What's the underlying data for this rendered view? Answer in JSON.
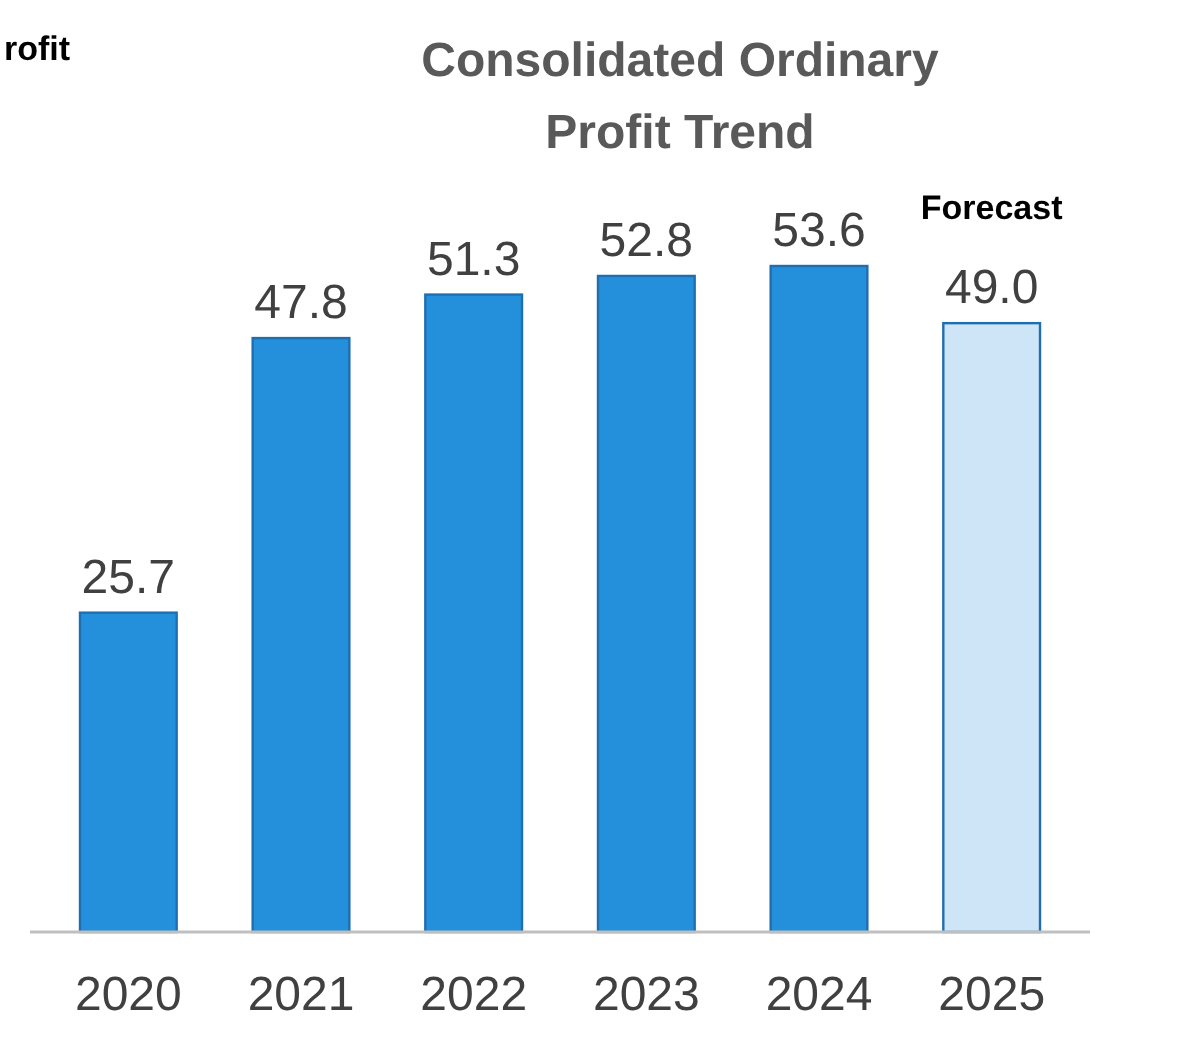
{
  "chart_data": {
    "type": "bar",
    "title": "Consolidated Ordinary Profit Trend",
    "categories": [
      "2020",
      "2021",
      "2022",
      "2023",
      "2024",
      "2025"
    ],
    "values": [
      25.7,
      47.8,
      51.3,
      52.8,
      53.6,
      49.0
    ],
    "value_labels": [
      "25.7",
      "47.8",
      "51.3",
      "52.8",
      "53.6",
      "49.0"
    ],
    "colors": [
      "#2490db",
      "#2490db",
      "#2490db",
      "#2490db",
      "#2490db",
      "#cde5f7"
    ],
    "annotations": [
      "rofit",
      {
        "text": "Forecast",
        "x": "2025",
        "y": 49.0
      }
    ]
  }
}
